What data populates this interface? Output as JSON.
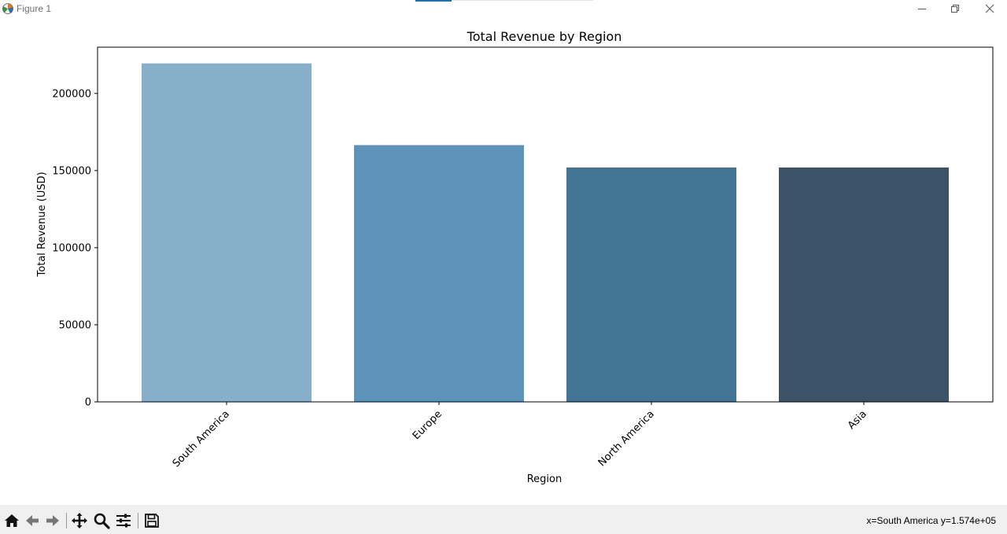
{
  "window": {
    "title": "Figure 1",
    "icon": "matplotlib-icon",
    "controls": [
      "minimize-icon",
      "restore-icon",
      "close-icon"
    ]
  },
  "toolbar": {
    "buttons": [
      "home-icon",
      "back-icon",
      "forward-icon",
      "pan-icon",
      "zoom-icon",
      "configure-subplots-icon",
      "save-icon"
    ],
    "coordinates": "x=South America y=1.574e+05"
  },
  "chart_data": {
    "type": "bar",
    "title": "Total Revenue by Region",
    "xlabel": "Region",
    "ylabel": "Total Revenue (USD)",
    "categories": [
      "South America",
      "Europe",
      "North America",
      "Asia"
    ],
    "values": [
      219500,
      166500,
      152000,
      152000
    ],
    "colors": [
      "#88afca",
      "#5e93b9",
      "#447495",
      "#3c5266"
    ],
    "ylim": [
      0,
      230000
    ],
    "yticks": [
      0,
      50000,
      100000,
      150000,
      200000
    ],
    "ytick_labels": [
      "0",
      "50000",
      "100000",
      "150000",
      "200000"
    ],
    "xtick_rotation": 45,
    "grid": false,
    "legend": "none"
  }
}
